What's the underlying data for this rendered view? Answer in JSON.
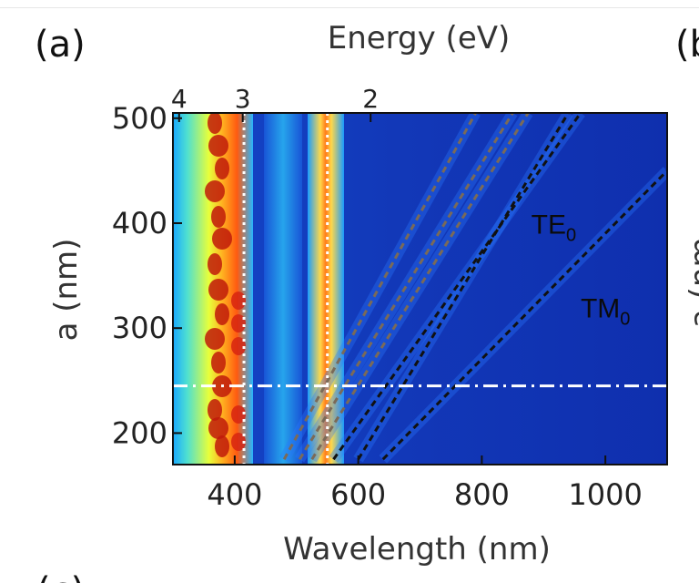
{
  "panel_label": "(a)",
  "right_panel_label": "(b",
  "right_axis_fragment": "a (nm",
  "bottom_partial": "(c)",
  "chart_data": {
    "type": "heatmap",
    "title": "",
    "xlabel": "Wavelength (nm)",
    "ylabel": "a (nm)",
    "top_axis_label": "Energy (eV)",
    "xlim": [
      300,
      1100
    ],
    "ylim": [
      170,
      505
    ],
    "x_ticks": [
      400,
      600,
      800,
      1000
    ],
    "y_ticks": [
      200,
      300,
      400,
      500
    ],
    "top_ticks": [
      {
        "label": "4",
        "wavelength": 310
      },
      {
        "label": "3",
        "wavelength": 413
      },
      {
        "label": "2",
        "wavelength": 620
      }
    ],
    "colormap": "jet",
    "vertical_guides": [
      {
        "wavelength": 415,
        "color": "#ffffff",
        "style": "dotted"
      },
      {
        "wavelength": 550,
        "color": "#ffffff",
        "style": "dotted"
      }
    ],
    "horizontal_guide": {
      "a": 245,
      "color": "#ffffff",
      "style": "dash-dot"
    },
    "modes": [
      {
        "name": "TE0",
        "label_text": "TE",
        "label_sub": "0",
        "x": [
          600,
          940
        ],
        "y": [
          175,
          505
        ],
        "color": "#111111"
      },
      {
        "name": "TM0",
        "label_text": "TM",
        "label_sub": "0",
        "x": [
          640,
          1100
        ],
        "y": [
          175,
          450
        ],
        "color": "#111111"
      },
      {
        "name": "",
        "x": [
          560,
          960
        ],
        "y": [
          175,
          505
        ],
        "color": "#111111"
      },
      {
        "name": "",
        "x": [
          480,
          790
        ],
        "y": [
          175,
          505
        ],
        "color": "#7a6a58"
      },
      {
        "name": "",
        "x": [
          505,
          850
        ],
        "y": [
          175,
          505
        ],
        "color": "#7a6a58"
      },
      {
        "name": "",
        "x": [
          525,
          875
        ],
        "y": [
          175,
          505
        ],
        "color": "#7a6a58"
      }
    ],
    "grid": false
  }
}
